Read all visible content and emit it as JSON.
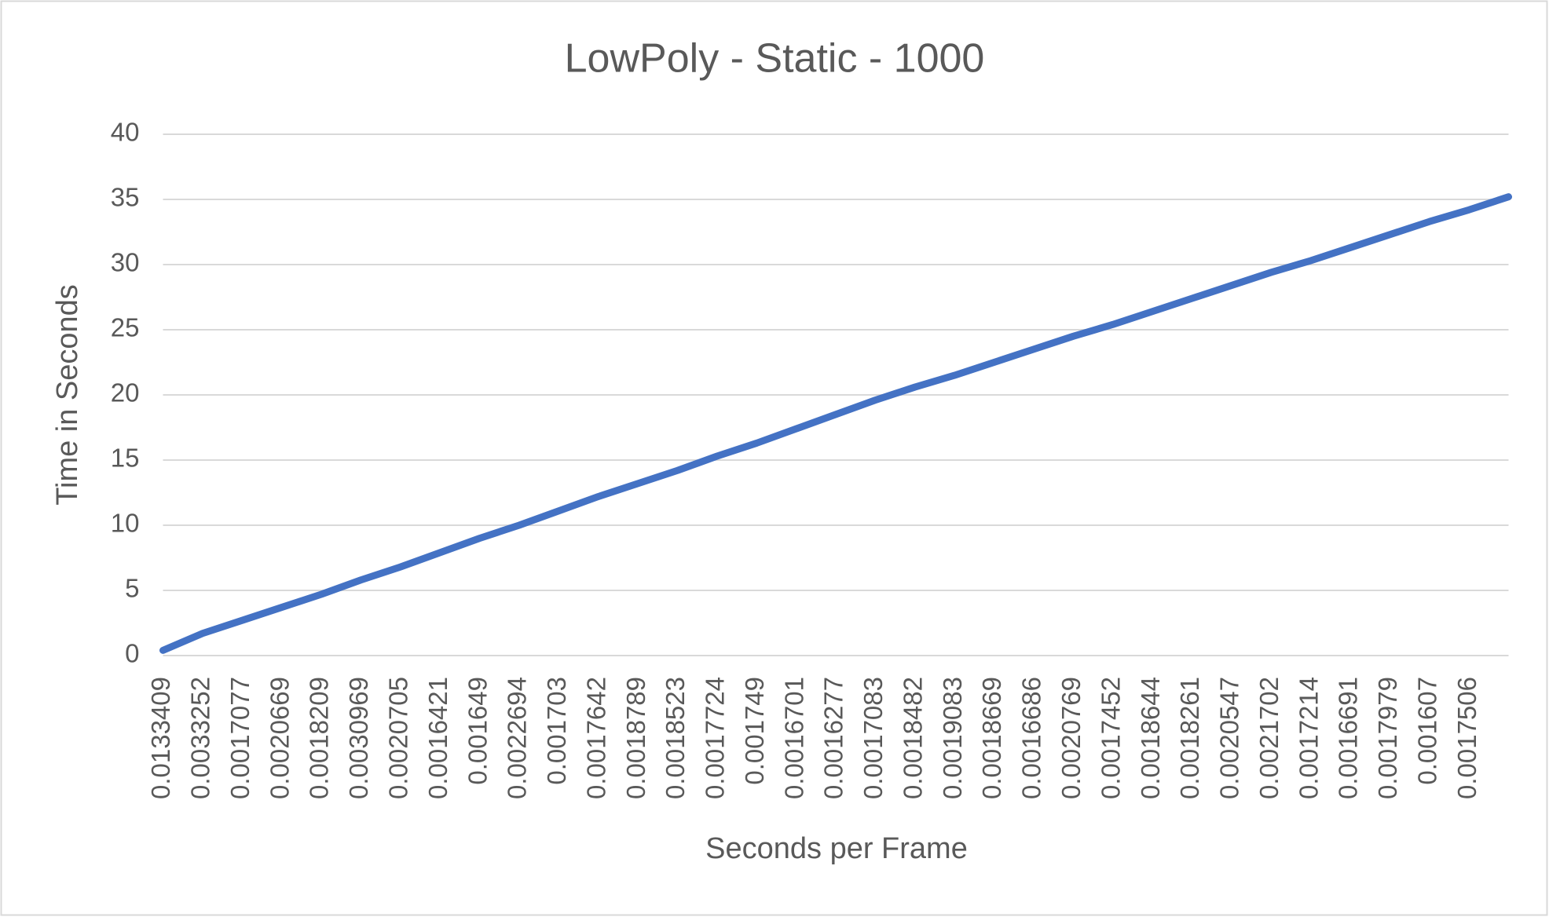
{
  "chart_data": {
    "type": "line",
    "title": "LowPoly - Static - 1000",
    "x_label": "Seconds per Frame",
    "y_label": "Time in Seconds",
    "categories": [
      "0.0133409",
      "0.0033252",
      "0.0017077",
      "0.0020669",
      "0.0018209",
      "0.0030969",
      "0.0020705",
      "0.0016421",
      "0.001649",
      "0.0022694",
      "0.001703",
      "0.0017642",
      "0.0018789",
      "0.0018523",
      "0.0017724",
      "0.001749",
      "0.0016701",
      "0.0016277",
      "0.0017083",
      "0.0018482",
      "0.0019083",
      "0.0018669",
      "0.0016686",
      "0.0020769",
      "0.0017452",
      "0.0018644",
      "0.0018261",
      "0.0020547",
      "0.0021702",
      "0.0017214",
      "0.0016691",
      "0.0017979",
      "0.001607",
      "0.0017506",
      null
    ],
    "values": [
      0.4,
      1.7,
      2.7,
      3.7,
      4.7,
      5.8,
      6.8,
      7.9,
      9.0,
      10.0,
      11.1,
      12.2,
      13.2,
      14.2,
      15.3,
      16.3,
      17.4,
      18.5,
      19.6,
      20.6,
      21.5,
      22.5,
      23.5,
      24.5,
      25.4,
      26.4,
      27.4,
      28.4,
      29.4,
      30.3,
      31.3,
      32.3,
      33.3,
      34.2,
      35.2
    ],
    "color": "#4472c4",
    "ylim": [
      0,
      40
    ],
    "yticks": [
      0,
      5,
      10,
      15,
      20,
      25,
      30,
      35,
      40
    ],
    "grid": true
  }
}
